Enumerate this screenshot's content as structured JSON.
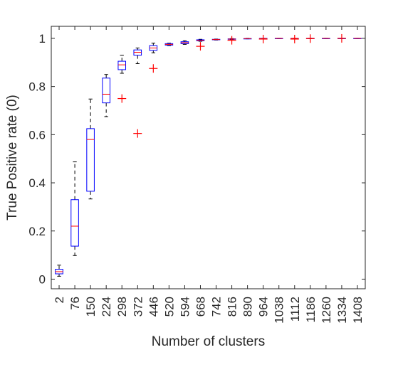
{
  "chart_data": {
    "type": "box",
    "title": "",
    "xlabel": "Number of clusters",
    "ylabel": "True Positive rate (0)",
    "ylim": [
      -0.04,
      1.05
    ],
    "yticks": [
      0,
      0.2,
      0.4,
      0.6,
      0.8,
      1
    ],
    "ytick_labels": [
      "0",
      "0.2",
      "0.4",
      "0.6",
      "0.8",
      "1"
    ],
    "grid": false,
    "legend": "none",
    "colors": {
      "box": "#0000ff",
      "median": "#ff0000",
      "outlier": "#ff0000",
      "whisker": "#000000",
      "axis": "#262626"
    },
    "categories": [
      "2",
      "76",
      "150",
      "224",
      "298",
      "372",
      "446",
      "520",
      "594",
      "668",
      "742",
      "816",
      "890",
      "964",
      "1038",
      "1112",
      "1186",
      "1260",
      "1334",
      "1408"
    ],
    "boxes": [
      {
        "min": 0.012,
        "q1": 0.022,
        "median": 0.031,
        "q3": 0.041,
        "max": 0.058,
        "outliers": []
      },
      {
        "min": 0.098,
        "q1": 0.137,
        "median": 0.22,
        "q3": 0.33,
        "max": 0.487,
        "outliers": []
      },
      {
        "min": 0.333,
        "q1": 0.365,
        "median": 0.58,
        "q3": 0.625,
        "max": 0.748,
        "outliers": []
      },
      {
        "min": 0.675,
        "q1": 0.732,
        "median": 0.768,
        "q3": 0.835,
        "max": 0.85,
        "outliers": []
      },
      {
        "min": 0.855,
        "q1": 0.87,
        "median": 0.89,
        "q3": 0.905,
        "max": 0.93,
        "outliers": [
          0.75
        ]
      },
      {
        "min": 0.895,
        "q1": 0.93,
        "median": 0.942,
        "q3": 0.952,
        "max": 0.96,
        "outliers": [
          0.605
        ]
      },
      {
        "min": 0.94,
        "q1": 0.95,
        "median": 0.96,
        "q3": 0.97,
        "max": 0.98,
        "outliers": [
          0.875
        ]
      },
      {
        "min": 0.97,
        "q1": 0.972,
        "median": 0.975,
        "q3": 0.978,
        "max": 0.98,
        "outliers": []
      },
      {
        "min": 0.975,
        "q1": 0.978,
        "median": 0.982,
        "q3": 0.986,
        "max": 0.99,
        "outliers": []
      },
      {
        "min": 0.988,
        "q1": 0.99,
        "median": 0.992,
        "q3": 0.994,
        "max": 0.996,
        "outliers": [
          0.967
        ]
      },
      {
        "min": 0.993,
        "q1": 0.994,
        "median": 0.995,
        "q3": 0.996,
        "max": 0.997,
        "outliers": []
      },
      {
        "min": 0.995,
        "q1": 0.996,
        "median": 0.997,
        "q3": 0.998,
        "max": 0.999,
        "outliers": [
          0.992
        ]
      },
      {
        "min": 0.998,
        "q1": 0.998,
        "median": 0.999,
        "q3": 0.999,
        "max": 1.0,
        "outliers": []
      },
      {
        "min": 0.999,
        "q1": 0.999,
        "median": 0.999,
        "q3": 1.0,
        "max": 1.0,
        "outliers": [
          0.997
        ]
      },
      {
        "min": 0.999,
        "q1": 1.0,
        "median": 1.0,
        "q3": 1.0,
        "max": 1.0,
        "outliers": []
      },
      {
        "min": 1.0,
        "q1": 1.0,
        "median": 1.0,
        "q3": 1.0,
        "max": 1.0,
        "outliers": [
          0.997
        ]
      },
      {
        "min": 1.0,
        "q1": 1.0,
        "median": 1.0,
        "q3": 1.0,
        "max": 1.0,
        "outliers": [
          0.999
        ]
      },
      {
        "min": 1.0,
        "q1": 1.0,
        "median": 1.0,
        "q3": 1.0,
        "max": 1.0,
        "outliers": []
      },
      {
        "min": 1.0,
        "q1": 1.0,
        "median": 1.0,
        "q3": 1.0,
        "max": 1.0,
        "outliers": [
          1.0
        ]
      },
      {
        "min": 1.0,
        "q1": 1.0,
        "median": 1.0,
        "q3": 1.0,
        "max": 1.0,
        "outliers": []
      }
    ]
  }
}
